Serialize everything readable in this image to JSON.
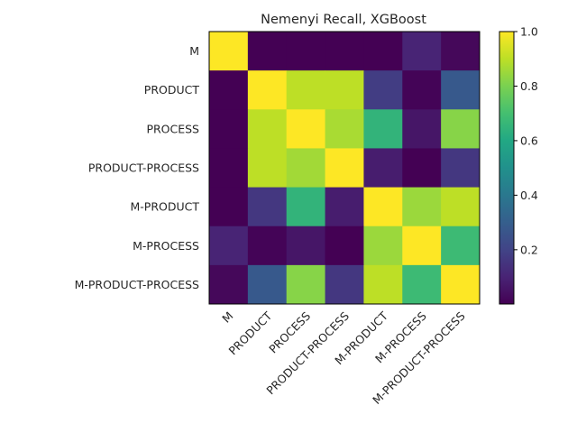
{
  "chart_data": {
    "type": "heatmap",
    "title": "Nemenyi Recall, XGBoost",
    "xlabel": "",
    "ylabel": "",
    "x_categories": [
      "M",
      "PRODUCT",
      "PROCESS",
      "PRODUCT-PROCESS",
      "M-PRODUCT",
      "M-PROCESS",
      "M-PRODUCT-PROCESS"
    ],
    "y_categories": [
      "M",
      "PRODUCT",
      "PROCESS",
      "PRODUCT-PROCESS",
      "M-PRODUCT",
      "M-PROCESS",
      "M-PRODUCT-PROCESS"
    ],
    "values": [
      [
        1.0,
        0.001,
        0.001,
        0.001,
        0.001,
        0.1,
        0.02
      ],
      [
        0.001,
        1.0,
        0.9,
        0.9,
        0.18,
        0.01,
        0.28
      ],
      [
        0.001,
        0.9,
        1.0,
        0.87,
        0.65,
        0.06,
        0.82
      ],
      [
        0.001,
        0.9,
        0.86,
        1.0,
        0.08,
        0.001,
        0.16
      ],
      [
        0.001,
        0.16,
        0.65,
        0.08,
        1.0,
        0.85,
        0.9
      ],
      [
        0.1,
        0.01,
        0.06,
        0.001,
        0.85,
        1.0,
        0.68
      ],
      [
        0.02,
        0.28,
        0.82,
        0.16,
        0.9,
        0.68,
        1.0
      ]
    ],
    "colormap": "viridis",
    "vmin": 0.001,
    "vmax": 1.0,
    "colorbar_ticks": [
      "0.2",
      "0.4",
      "0.6",
      "0.8",
      "1.0"
    ],
    "colorbar_tick_values": [
      0.2,
      0.4,
      0.6,
      0.8,
      1.0
    ],
    "grid": false
  }
}
